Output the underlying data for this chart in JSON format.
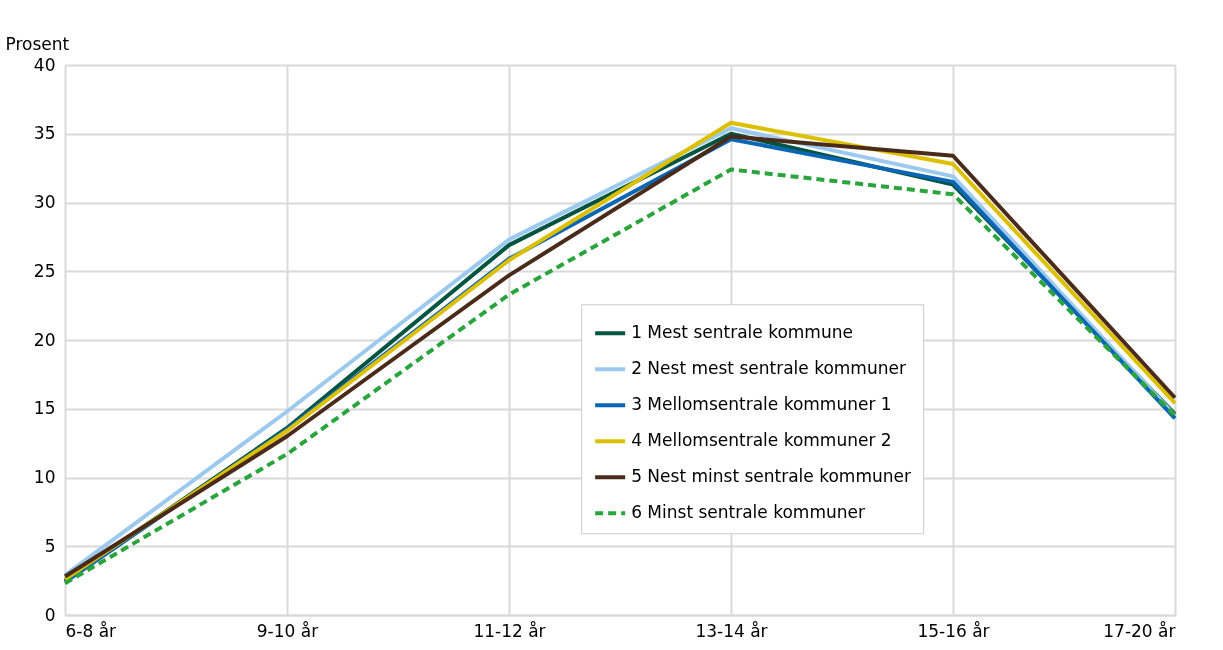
{
  "chart_data": {
    "type": "line",
    "ylabel": "Prosent",
    "categories": [
      "6-8 år",
      "9-10 år",
      "11-12 år",
      "13-14 år",
      "15-16 år",
      "17-20 år"
    ],
    "ylim": [
      0,
      40
    ],
    "yticks": [
      0,
      5,
      10,
      15,
      20,
      25,
      30,
      35,
      40
    ],
    "grid": true,
    "legend": "bottom right",
    "marker": "none",
    "series": [
      {
        "name": "1 Mest sentrale kommune",
        "color": "#005441",
        "line_style": "solid",
        "values": [
          2.5,
          13.6,
          26.9,
          35.0,
          31.3,
          14.6
        ]
      },
      {
        "name": "2 Nest mest sentrale kommuner",
        "color": "#9ccaee",
        "line_style": "solid",
        "values": [
          2.9,
          14.8,
          27.3,
          35.4,
          31.9,
          14.5
        ]
      },
      {
        "name": "3 Mellomsentrale kommuner 1",
        "color": "#0a66b4",
        "line_style": "solid",
        "values": [
          2.4,
          13.5,
          25.9,
          34.6,
          31.5,
          14.3
        ]
      },
      {
        "name": "4 Mellomsentrale kommuner 2",
        "color": "#dcc000",
        "line_style": "solid",
        "values": [
          2.6,
          13.4,
          25.8,
          35.8,
          32.8,
          15.4
        ]
      },
      {
        "name": "5 Nest minst sentrale kommuner",
        "color": "#4a2a18",
        "line_style": "solid",
        "values": [
          2.8,
          13.0,
          24.7,
          34.8,
          33.4,
          15.8
        ]
      },
      {
        "name": "6 Minst sentrale kommuner",
        "color": "#2aa43c",
        "line_style": "dashed",
        "values": [
          2.3,
          11.7,
          23.3,
          32.4,
          30.6,
          14.5
        ]
      }
    ]
  }
}
